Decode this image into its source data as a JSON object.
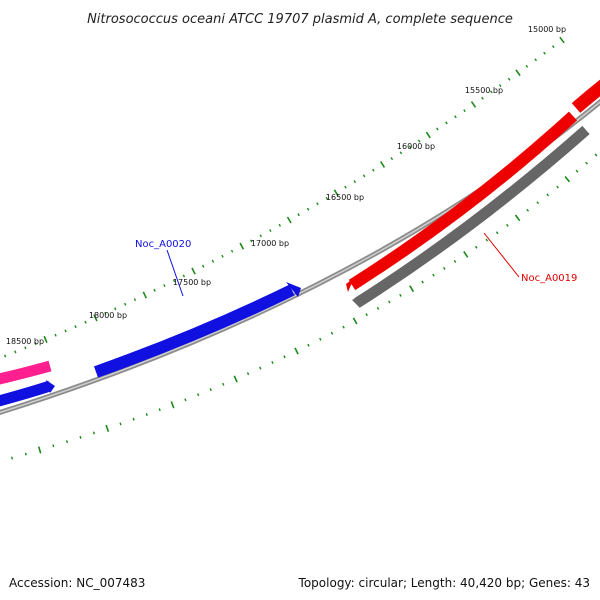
{
  "title": "Nitrosococcus oceani ATCC 19707 plasmid A, complete sequence",
  "tick_labels": [
    "15000 bp",
    "15500 bp",
    "16000 bp",
    "16500 bp",
    "17000 bp",
    "17500 bp",
    "18000 bp",
    "18500 bp"
  ],
  "genes": [
    {
      "label": "Noc_A0020",
      "color": "#1010e0"
    },
    {
      "label": "Noc_A0019",
      "color": "#e00000"
    }
  ],
  "colors": {
    "backbone": "#888888",
    "ticks": "#1a8a1a",
    "forward": "#1010e0",
    "reverse": "#ee0000",
    "pink": "#ff1f8f",
    "grey_feature": "#666666"
  },
  "footer": {
    "accession": "Accession: NC_007483",
    "summary": "Topology: circular; Length: 40,420 bp; Genes: 43"
  }
}
